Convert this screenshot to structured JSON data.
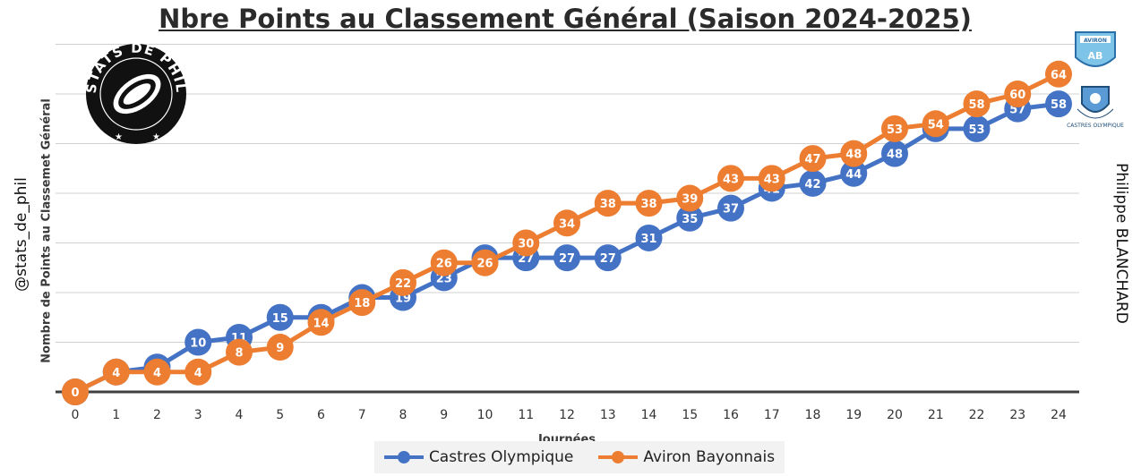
{
  "title": "Nbre Points au Classement Général (Saison 2024-2025)",
  "handle": "@stats_de_phil",
  "author": "Philippe BLANCHARD",
  "logo": {
    "text": "STATS DE PHIL",
    "icon": "rugby-ball-icon"
  },
  "badges": [
    {
      "name": "Aviron Bayonnais",
      "icon": "aviron-bayonnais-crest-icon"
    },
    {
      "name": "Castres Olympique",
      "icon": "castres-olympique-crest-icon"
    }
  ],
  "chart_data": {
    "type": "line",
    "title": "Nbre Points au Classement Général (Saison 2024-2025)",
    "xlabel": "Journées",
    "ylabel": "Nombre de Points au Classemet Général",
    "x": [
      0,
      1,
      2,
      3,
      4,
      5,
      6,
      7,
      8,
      9,
      10,
      11,
      12,
      13,
      14,
      15,
      16,
      17,
      18,
      19,
      20,
      21,
      22,
      23,
      24
    ],
    "ylim": [
      0,
      70
    ],
    "grid": true,
    "legend_position": "bottom",
    "series": [
      {
        "name": "Castres Olympique",
        "color": "#4472c4",
        "values": [
          0,
          4,
          5,
          10,
          11,
          15,
          15,
          19,
          19,
          23,
          27,
          27,
          27,
          27,
          31,
          35,
          37,
          41,
          42,
          44,
          48,
          53,
          53,
          57,
          58
        ]
      },
      {
        "name": "Aviron Bayonnais",
        "color": "#ed7d31",
        "values": [
          0,
          4,
          4,
          4,
          8,
          9,
          14,
          18,
          22,
          26,
          26,
          30,
          34,
          38,
          38,
          39,
          43,
          43,
          47,
          48,
          53,
          54,
          58,
          60,
          64
        ]
      }
    ]
  }
}
